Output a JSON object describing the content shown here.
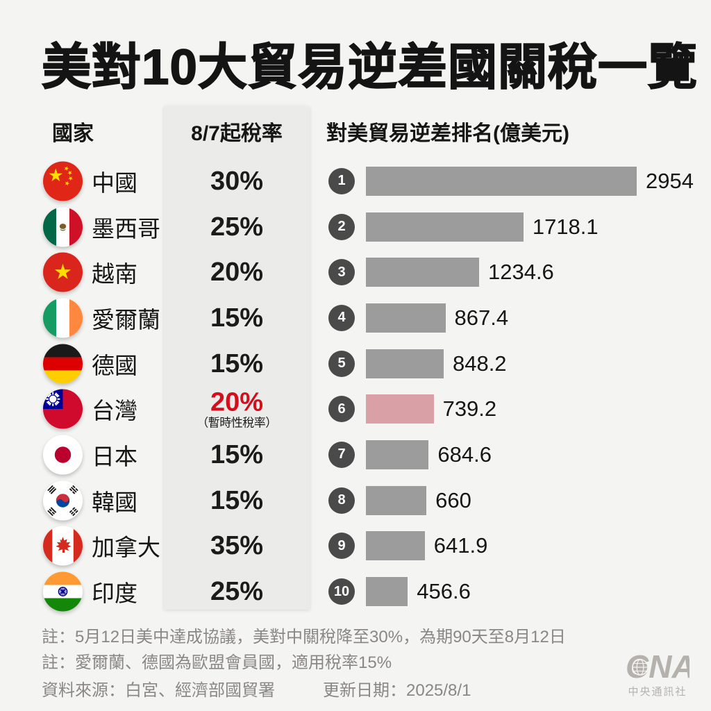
{
  "title": "美對10大貿易逆差國關稅一覽",
  "columns": {
    "country": "國家",
    "rate": "8/7起稅率",
    "deficit": "對美貿易逆差排名(億美元)"
  },
  "rows": [
    {
      "rank": "1",
      "country": "中國",
      "flag": "flag-china",
      "rate": "30%",
      "value": "2954",
      "value_num": 2954
    },
    {
      "rank": "2",
      "country": "墨西哥",
      "flag": "flag-mexico",
      "rate": "25%",
      "value": "1718.1",
      "value_num": 1718.1
    },
    {
      "rank": "3",
      "country": "越南",
      "flag": "flag-vietnam",
      "rate": "20%",
      "value": "1234.6",
      "value_num": 1234.6
    },
    {
      "rank": "4",
      "country": "愛爾蘭",
      "flag": "flag-ireland",
      "rate": "15%",
      "value": "867.4",
      "value_num": 867.4
    },
    {
      "rank": "5",
      "country": "德國",
      "flag": "flag-germany",
      "rate": "15%",
      "value": "848.2",
      "value_num": 848.2
    },
    {
      "rank": "6",
      "country": "台灣",
      "flag": "flag-taiwan",
      "rate": "20%",
      "rate_note": "（暫時性稅率）",
      "rate_color": "#d2101d",
      "value": "739.2",
      "value_num": 739.2,
      "bar_color": "#d9a0a6"
    },
    {
      "rank": "7",
      "country": "日本",
      "flag": "flag-japan",
      "rate": "15%",
      "value": "684.6",
      "value_num": 684.6
    },
    {
      "rank": "8",
      "country": "韓國",
      "flag": "flag-korea",
      "rate": "15%",
      "value": "660",
      "value_num": 660
    },
    {
      "rank": "9",
      "country": "加拿大",
      "flag": "flag-canada",
      "rate": "35%",
      "value": "641.9",
      "value_num": 641.9
    },
    {
      "rank": "10",
      "country": "印度",
      "flag": "flag-india",
      "rate": "25%",
      "value": "456.6",
      "value_num": 456.6
    }
  ],
  "notes": [
    "註：5月12日美中達成協議，美對中關稅降至30%，為期90天至8月12日",
    "註：愛爾蘭、德國為歐盟會員國，適用稅率15%"
  ],
  "footer": {
    "source": "資料來源：白宮、經濟部國貿署",
    "updated": "更新日期：2025/8/1"
  },
  "logo": {
    "name": "CNA",
    "caption": "中央通訊社"
  },
  "colors": {
    "background": "#f4f4f2",
    "band": "#ebebe9",
    "bar": "#9c9c9c",
    "bar_highlight": "#d9a0a6",
    "rank_badge": "#4a4a4a",
    "rate_highlight": "#d2101d",
    "note_text": "#8a8784",
    "logo_gray": "#b5b2ae"
  },
  "chart_data": {
    "type": "bar",
    "orientation": "horizontal",
    "title": "美對10大貿易逆差國關稅一覽",
    "categories": [
      "中國",
      "墨西哥",
      "越南",
      "愛爾蘭",
      "德國",
      "台灣",
      "日本",
      "韓國",
      "加拿大",
      "印度"
    ],
    "series": [
      {
        "name": "對美貿易逆差(億美元)",
        "values": [
          2954,
          1718.1,
          1234.6,
          867.4,
          848.2,
          739.2,
          684.6,
          660,
          641.9,
          456.6
        ]
      },
      {
        "name": "8/7起稅率(%)",
        "values": [
          30,
          25,
          20,
          15,
          15,
          20,
          15,
          15,
          35,
          25
        ]
      }
    ],
    "value_labels": [
      "2954",
      "1718.1",
      "1234.6",
      "867.4",
      "848.2",
      "739.2",
      "684.6",
      "660",
      "641.9",
      "456.6"
    ],
    "xlabel": "對美貿易逆差排名(億美元)",
    "xlim": [
      0,
      3000
    ],
    "grid": false,
    "legend": false,
    "bar_color": "#9c9c9c",
    "highlight": {
      "category": "台灣",
      "color": "#d9a0a6",
      "note": "暫時性稅率，稅率20%"
    }
  }
}
